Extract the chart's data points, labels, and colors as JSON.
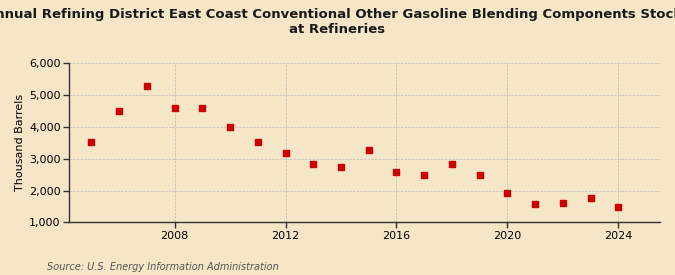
{
  "title_line1": "Annual Refining District East Coast Conventional Other Gasoline Blending Components Stocks",
  "title_line2": "at Refineries",
  "ylabel": "Thousand Barrels",
  "source": "Source: U.S. Energy Information Administration",
  "background_color": "#f5e6c8",
  "plot_background_color": "#f5e6c8",
  "marker_color": "#cc0000",
  "grid_color": "#bbbbbb",
  "years": [
    2005,
    2006,
    2007,
    2008,
    2009,
    2010,
    2011,
    2012,
    2013,
    2014,
    2015,
    2016,
    2017,
    2018,
    2019,
    2020,
    2021,
    2022,
    2023,
    2024
  ],
  "values": [
    3530,
    4480,
    5280,
    4600,
    4580,
    3980,
    3520,
    3190,
    2840,
    2730,
    3260,
    2590,
    2500,
    2820,
    2480,
    1930,
    1590,
    1620,
    1780,
    1490
  ],
  "ylim": [
    1000,
    6000
  ],
  "yticks": [
    1000,
    2000,
    3000,
    4000,
    5000,
    6000
  ],
  "xticks": [
    2008,
    2012,
    2016,
    2020,
    2024
  ],
  "xlim_left": 2004.2,
  "xlim_right": 2025.5,
  "title_fontsize": 9.5,
  "axis_label_fontsize": 8,
  "tick_fontsize": 8,
  "source_fontsize": 7
}
